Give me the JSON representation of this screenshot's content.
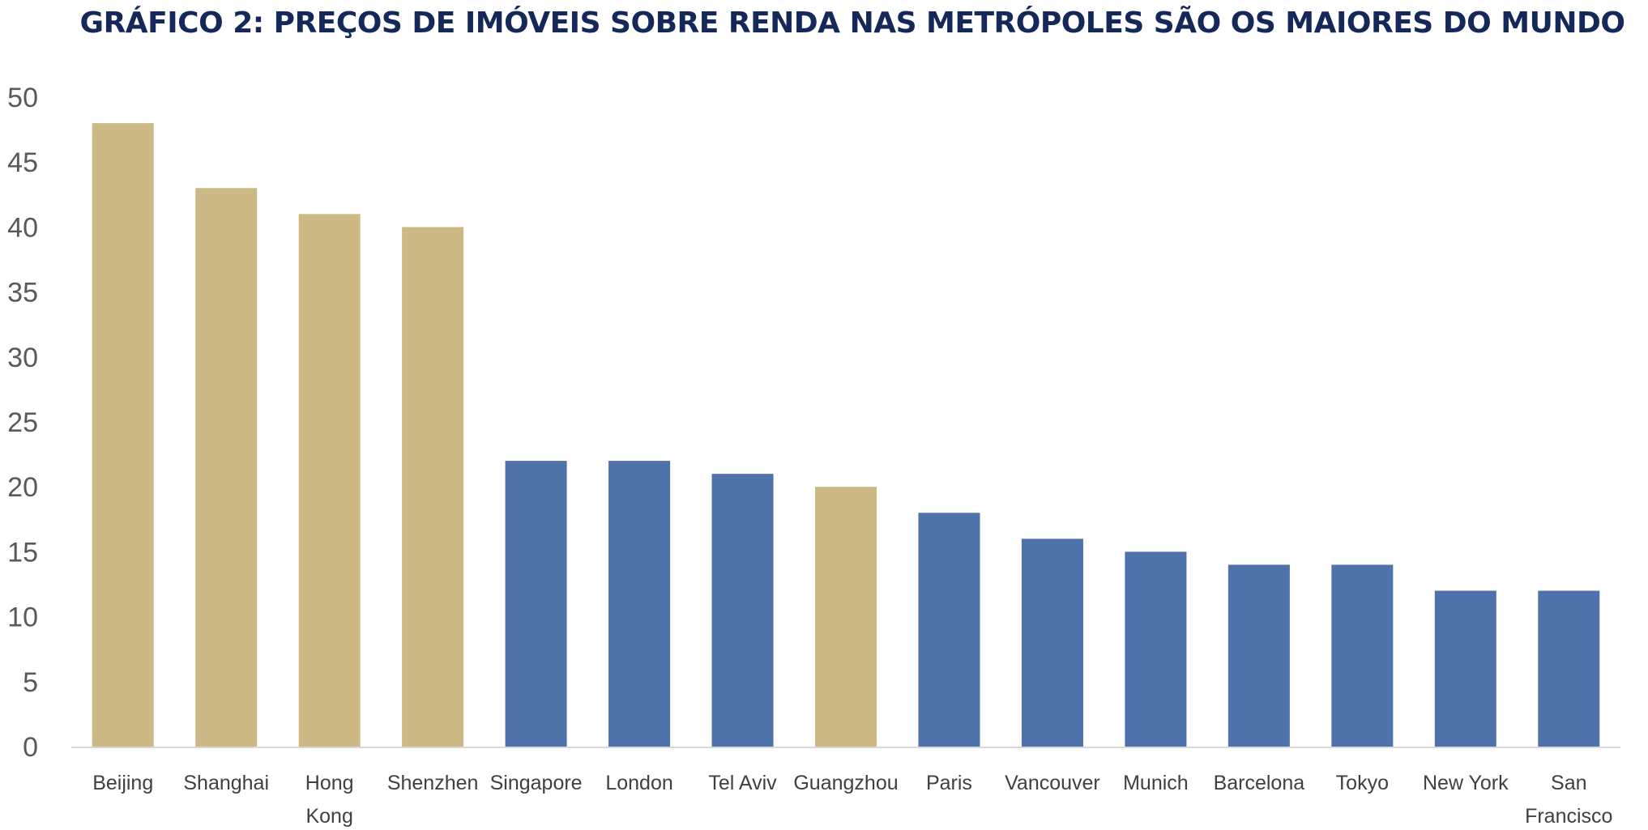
{
  "chart_data": {
    "type": "bar",
    "title": "GRÁFICO 2: PREÇOS DE IMÓVEIS SOBRE RENDA NAS METRÓPOLES SÃO OS MAIORES DO MUNDO",
    "xlabel": "",
    "ylabel": "",
    "ylim": [
      0,
      50
    ],
    "yticks": [
      0,
      5,
      10,
      15,
      20,
      25,
      30,
      35,
      40,
      45,
      50
    ],
    "grid": false,
    "legend": "none",
    "categories": [
      "Beijing",
      "Shanghai",
      "Hong Kong",
      "Shenzhen",
      "Singapore",
      "London",
      "Tel Aviv",
      "Guangzhou",
      "Paris",
      "Vancouver",
      "Munich",
      "Barcelona",
      "Tokyo",
      "New York",
      "San Francisco"
    ],
    "values": [
      48,
      43,
      41,
      40,
      22,
      22,
      21,
      20,
      18,
      16,
      15,
      14,
      14,
      12,
      12
    ],
    "bar_colors": [
      "#cdb985",
      "#cdb985",
      "#cdb985",
      "#cdb985",
      "#4f72aa",
      "#4f72aa",
      "#4f72aa",
      "#cdb985",
      "#4f72aa",
      "#4f72aa",
      "#4f72aa",
      "#4f72aa",
      "#4f72aa",
      "#4f72aa",
      "#4f72aa"
    ],
    "colors": {
      "highlight": "#cdb985",
      "base": "#4f72aa",
      "axis": "#d9d9d9",
      "title": "#14285a"
    }
  }
}
